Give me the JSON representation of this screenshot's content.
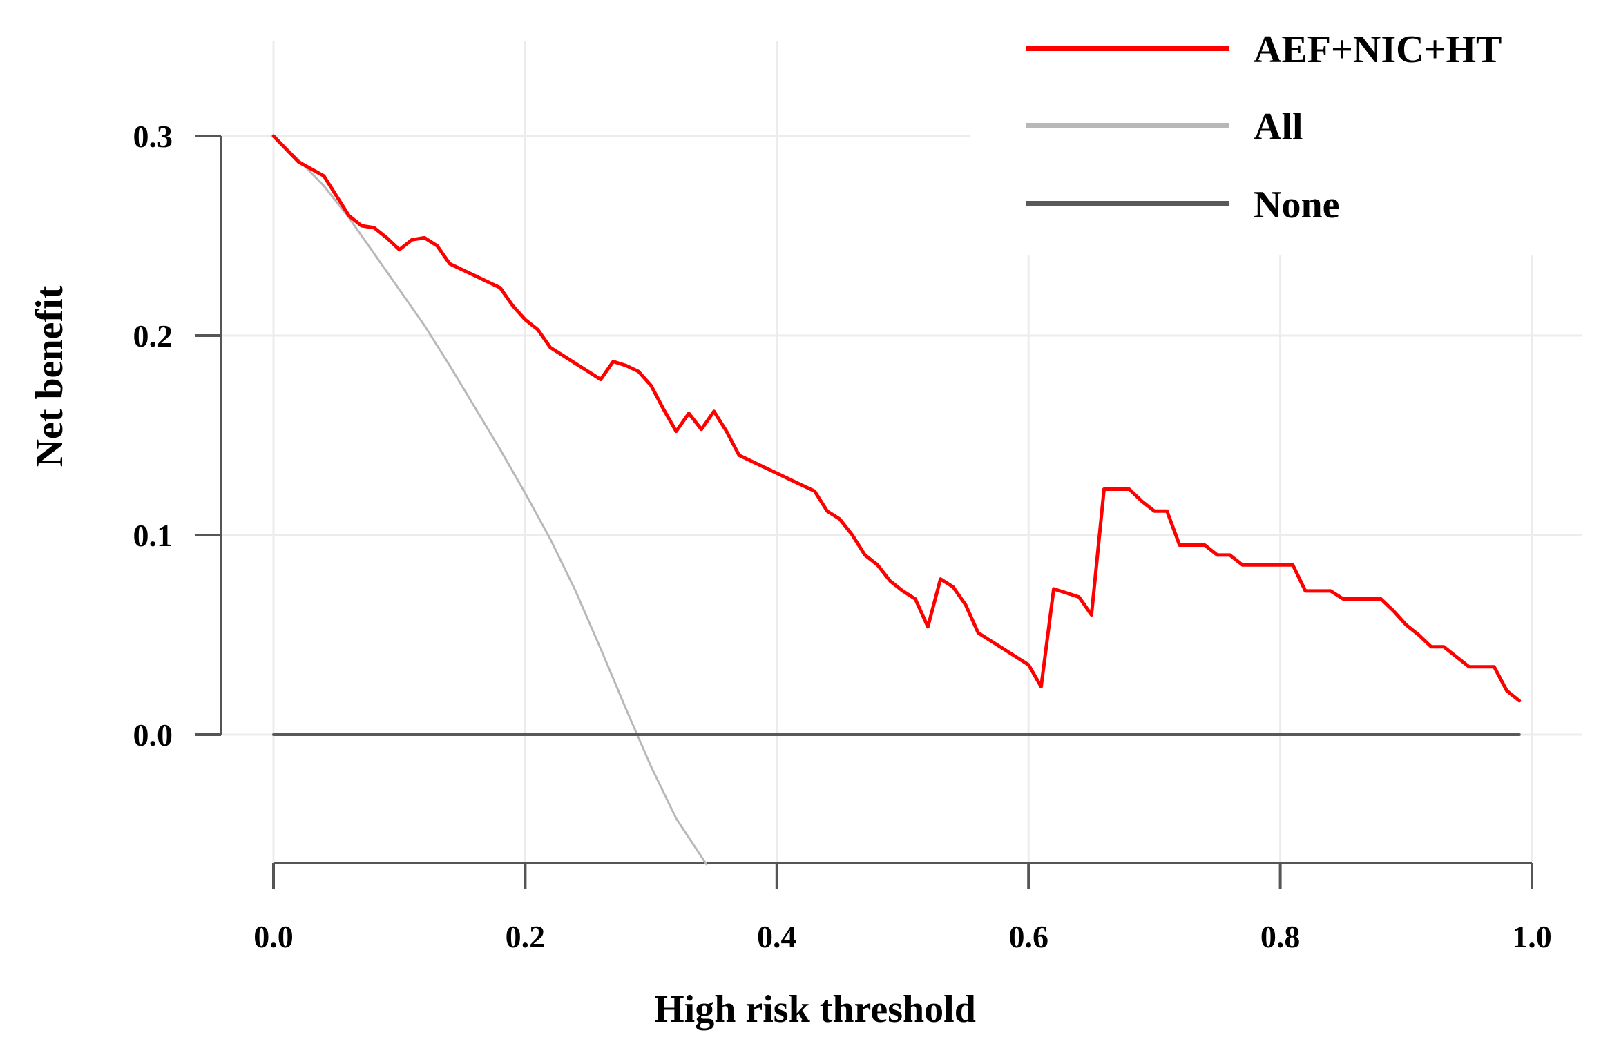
{
  "chart_data": {
    "type": "line",
    "title": "",
    "xlabel": "High risk threshold",
    "ylabel": "Net benefit",
    "xlim": [
      0.0,
      1.0
    ],
    "ylim": [
      -0.065,
      0.31
    ],
    "xticks": [
      {
        "value": 0.0,
        "label": "0.0"
      },
      {
        "value": 0.2,
        "label": "0.2"
      },
      {
        "value": 0.4,
        "label": "0.4"
      },
      {
        "value": 0.6,
        "label": "0.6"
      },
      {
        "value": 0.8,
        "label": "0.8"
      },
      {
        "value": 1.0,
        "label": "1.0"
      }
    ],
    "yticks": [
      {
        "value": 0.0,
        "label": "0.0"
      },
      {
        "value": 0.1,
        "label": "0.1"
      },
      {
        "value": 0.2,
        "label": "0.2"
      },
      {
        "value": 0.3,
        "label": "0.3"
      }
    ],
    "grid": true,
    "legend_position": "top-right",
    "series": [
      {
        "name": "AEF+NIC+HT",
        "color": "#ff0000",
        "x": [
          0.0,
          0.02,
          0.04,
          0.05,
          0.06,
          0.07,
          0.08,
          0.09,
          0.1,
          0.11,
          0.12,
          0.13,
          0.14,
          0.15,
          0.16,
          0.17,
          0.18,
          0.19,
          0.2,
          0.21,
          0.22,
          0.23,
          0.24,
          0.25,
          0.26,
          0.27,
          0.28,
          0.29,
          0.3,
          0.31,
          0.32,
          0.33,
          0.34,
          0.35,
          0.36,
          0.37,
          0.38,
          0.39,
          0.4,
          0.41,
          0.42,
          0.43,
          0.44,
          0.45,
          0.46,
          0.47,
          0.48,
          0.49,
          0.5,
          0.51,
          0.52,
          0.53,
          0.54,
          0.55,
          0.56,
          0.57,
          0.58,
          0.59,
          0.6,
          0.61,
          0.62,
          0.63,
          0.64,
          0.65,
          0.66,
          0.67,
          0.68,
          0.69,
          0.7,
          0.71,
          0.72,
          0.73,
          0.74,
          0.75,
          0.76,
          0.77,
          0.78,
          0.79,
          0.8,
          0.81,
          0.82,
          0.83,
          0.84,
          0.85,
          0.86,
          0.87,
          0.88,
          0.89,
          0.9,
          0.91,
          0.92,
          0.93,
          0.94,
          0.95,
          0.96,
          0.97,
          0.98,
          0.99
        ],
        "values": [
          0.3,
          0.287,
          0.28,
          0.27,
          0.26,
          0.255,
          0.254,
          0.249,
          0.243,
          0.248,
          0.249,
          0.245,
          0.236,
          0.233,
          0.23,
          0.227,
          0.224,
          0.215,
          0.208,
          0.203,
          0.194,
          0.19,
          0.186,
          0.182,
          0.178,
          0.187,
          0.185,
          0.182,
          0.175,
          0.163,
          0.152,
          0.161,
          0.153,
          0.162,
          0.152,
          0.14,
          0.137,
          0.134,
          0.131,
          0.128,
          0.125,
          0.122,
          0.112,
          0.108,
          0.1,
          0.09,
          0.085,
          0.077,
          0.072,
          0.068,
          0.054,
          0.078,
          0.074,
          0.065,
          0.051,
          0.047,
          0.043,
          0.039,
          0.035,
          0.024,
          0.073,
          0.071,
          0.069,
          0.06,
          0.123,
          0.123,
          0.123,
          0.117,
          0.112,
          0.112,
          0.095,
          0.095,
          0.095,
          0.09,
          0.09,
          0.085,
          0.085,
          0.085,
          0.085,
          0.085,
          0.072,
          0.072,
          0.072,
          0.068,
          0.068,
          0.068,
          0.068,
          0.062,
          0.055,
          0.05,
          0.044,
          0.044,
          0.039,
          0.034,
          0.034,
          0.034,
          0.022,
          0.017
        ]
      },
      {
        "name": "All",
        "color": "#b8b8b8",
        "x": [
          0.0,
          0.02,
          0.04,
          0.06,
          0.08,
          0.1,
          0.12,
          0.14,
          0.16,
          0.18,
          0.2,
          0.22,
          0.24,
          0.26,
          0.28,
          0.3,
          0.32,
          0.344
        ],
        "values": [
          0.3,
          0.288,
          0.275,
          0.259,
          0.241,
          0.223,
          0.205,
          0.185,
          0.164,
          0.143,
          0.121,
          0.098,
          0.072,
          0.043,
          0.013,
          -0.016,
          -0.042,
          -0.065
        ]
      },
      {
        "name": "None",
        "color": "#595959",
        "x": [
          0.0,
          0.99
        ],
        "values": [
          0.0,
          0.0
        ]
      }
    ]
  }
}
